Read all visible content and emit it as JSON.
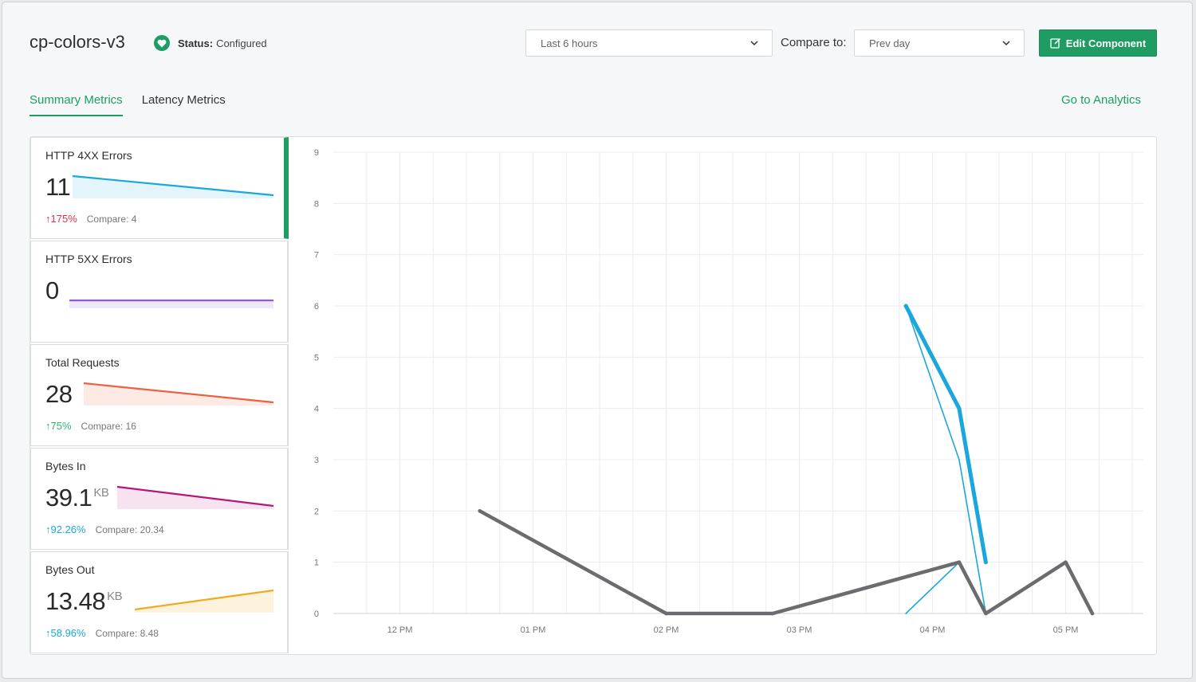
{
  "app": {
    "title": "cp-colors-v3",
    "status_label": "Status:",
    "status_value": "Configured"
  },
  "controls": {
    "time_range": "Last 6 hours",
    "compare_label": "Compare to:",
    "compare_value": "Prev day",
    "edit_button": "Edit Component"
  },
  "tabs": [
    {
      "label": "Summary Metrics",
      "active": true
    },
    {
      "label": "Latency Metrics",
      "active": false
    }
  ],
  "analytics_link": "Go to Analytics",
  "colors": {
    "brand_green": "#1e9d63",
    "up_red": "#e0314b",
    "up_green": "#2bb673",
    "up_blue": "#1aa8dc"
  },
  "metrics": [
    {
      "title": "HTTP 4XX Errors",
      "value": "11",
      "unit": "",
      "change": "175%",
      "change_color": "#e0314b",
      "compare_label": "Compare:",
      "compare_value": "4",
      "spark_color": "#1aa8dc",
      "spark_fill": "#e3f4fb",
      "spark_trend": [
        1.0,
        0.0
      ]
    },
    {
      "title": "HTTP 5XX Errors",
      "value": "0",
      "unit": "",
      "change": "",
      "change_color": "",
      "compare_label": "",
      "compare_value": "",
      "spark_color": "#8e5ad8",
      "spark_fill": "#efe8f9",
      "spark_trend": [
        0.5,
        0.5
      ]
    },
    {
      "title": "Total Requests",
      "value": "28",
      "unit": "",
      "change": "75%",
      "change_color": "#2bb673",
      "compare_label": "Compare:",
      "compare_value": "16",
      "spark_color": "#ec6142",
      "spark_fill": "#fdeae5",
      "spark_trend": [
        1.0,
        0.0
      ]
    },
    {
      "title": "Bytes In",
      "value": "39.1",
      "unit": "KB",
      "change": "92.26%",
      "change_color": "#1aa8dc",
      "compare_label": "Compare:",
      "compare_value": "20.34",
      "spark_color": "#b8157a",
      "spark_fill": "#f7e3ef",
      "spark_trend": [
        1.0,
        0.0
      ]
    },
    {
      "title": "Bytes Out",
      "value": "13.48",
      "unit": "KB",
      "change": "58.96%",
      "change_color": "#1aa8dc",
      "compare_label": "Compare:",
      "compare_value": "8.48",
      "spark_color": "#f0aa22",
      "spark_fill": "#fdf2dc",
      "spark_trend": [
        0.0,
        1.0
      ]
    }
  ],
  "chart_data": {
    "type": "line",
    "xlabel": "",
    "ylabel": "",
    "ylim": [
      0,
      9
    ],
    "yticks": [
      0,
      1,
      2,
      3,
      4,
      5,
      6,
      7,
      8,
      9
    ],
    "xlim": [
      "11:30",
      "17:35"
    ],
    "xticks": [
      "12 PM",
      "01 PM",
      "02 PM",
      "03 PM",
      "04 PM",
      "05 PM"
    ],
    "grid": true,
    "series": [
      {
        "color": "#1aa8dc",
        "width": 5,
        "x": [
          "15:48",
          "16:12",
          "16:24"
        ],
        "y": [
          6,
          4,
          1
        ]
      },
      {
        "color": "#1aa8dc",
        "width": 1.6,
        "x": [
          "15:48",
          "16:12",
          "16:24",
          "16:12",
          "15:48"
        ],
        "y": [
          6,
          3,
          0,
          1,
          0
        ]
      },
      {
        "color": "#6b6c6f",
        "width": 4.5,
        "x": [
          "12:36",
          "14:00",
          "14:48",
          "16:12",
          "16:24",
          "17:00",
          "17:12"
        ],
        "y": [
          2,
          0,
          0,
          1,
          0,
          1,
          0
        ]
      }
    ]
  }
}
